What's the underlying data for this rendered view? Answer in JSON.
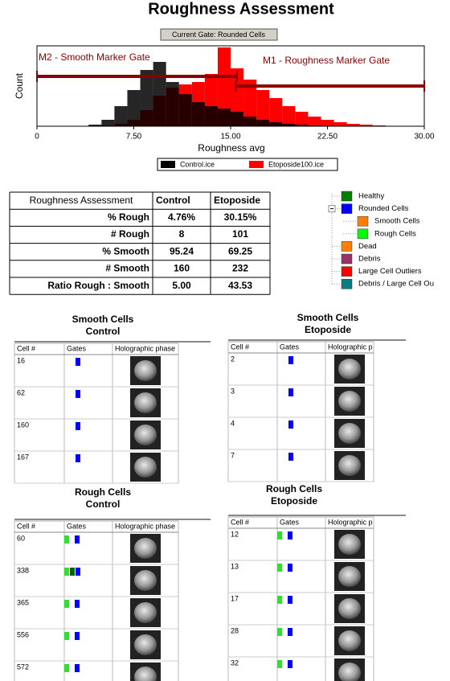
{
  "header": {
    "title": "Roughness Assessment",
    "current_gate": "Current Gate: Rounded Cells"
  },
  "histogram": {
    "x_label": "Roughness avg",
    "y_label": "Count",
    "xlim": [
      0,
      30
    ],
    "xticks": [
      0,
      {
        "value": 7.5,
        "label": "7.50"
      },
      {
        "value": 15,
        "label": "15.00"
      },
      {
        "value": 22.5,
        "label": "22.50"
      },
      {
        "value": 30,
        "label": "30.00"
      }
    ],
    "ylim": [
      0,
      100
    ],
    "bins": [
      0,
      1,
      2,
      3,
      4,
      5,
      6,
      7,
      8,
      9,
      10,
      11,
      12,
      13,
      14,
      15,
      16,
      17,
      18,
      19,
      20,
      21,
      22,
      23,
      24,
      25,
      26,
      27,
      28,
      29,
      30
    ],
    "series": [
      {
        "name": "Etoposide100.ice",
        "color": "#ff0000",
        "values": [
          0,
          0,
          0,
          0,
          0,
          1,
          3,
          8,
          20,
          38,
          48,
          52,
          55,
          65,
          98,
          72,
          58,
          45,
          35,
          25,
          18,
          12,
          8,
          5,
          3,
          2,
          1,
          0,
          0,
          0
        ]
      },
      {
        "name": "Control.ice",
        "color": "#000000",
        "values": [
          0,
          0,
          0,
          0,
          2,
          8,
          25,
          45,
          70,
          80,
          55,
          40,
          30,
          25,
          22,
          18,
          12,
          8,
          5,
          3,
          2,
          1,
          0,
          0,
          0,
          0,
          0,
          0,
          0,
          0
        ]
      }
    ],
    "markers": [
      {
        "label": "M2 - Smooth Marker Gate",
        "range": [
          0,
          15.5
        ],
        "color": "#8b0000"
      },
      {
        "label": "M1 - Roughness Marker Gate",
        "range": [
          15.4,
          30
        ],
        "color": "#8b0000"
      }
    ]
  },
  "summary_table": {
    "columns": [
      "Roughness Assessment",
      "Control",
      "Etoposide"
    ],
    "rows": [
      [
        "% Rough",
        "4.76%",
        "30.15%"
      ],
      [
        "# Rough",
        "8",
        "101"
      ],
      [
        "% Smooth",
        "95.24",
        "69.25"
      ],
      [
        "# Smooth",
        "160",
        "232"
      ],
      [
        "Ratio Rough : Smooth",
        "5.00",
        "43.53"
      ]
    ]
  },
  "gate_tree": [
    {
      "label": "Healthy",
      "color": "#008000",
      "level": 0
    },
    {
      "label": "Rounded Cells",
      "color": "#0000ff",
      "level": 0
    },
    {
      "label": "Smooth Cells",
      "color": "#ff8000",
      "level": 1
    },
    {
      "label": "Rough Cells",
      "color": "#00ff00",
      "level": 1
    },
    {
      "label": "Dead",
      "color": "#ff8000",
      "level": 0
    },
    {
      "label": "Debris",
      "color": "#993366",
      "level": 0
    },
    {
      "label": "Large Cell Outliers",
      "color": "#ff0000",
      "level": 0
    },
    {
      "label": "Debris / Large Cell Ou",
      "color": "#008080",
      "level": 0
    }
  ],
  "panels": [
    {
      "title": [
        "Smooth Cells",
        "Control"
      ],
      "columns": [
        "Cell #",
        "Gates",
        "Holographic phase"
      ],
      "rows": [
        {
          "cell": 16,
          "gates": [
            "#0000ff"
          ]
        },
        {
          "cell": 62,
          "gates": [
            "#0000ff"
          ]
        },
        {
          "cell": 160,
          "gates": [
            "#0000ff"
          ]
        },
        {
          "cell": 167,
          "gates": [
            "#0000ff"
          ]
        }
      ]
    },
    {
      "title": [
        "Smooth Cells",
        "Etoposide"
      ],
      "columns": [
        "Cell #",
        "Gates",
        "Holographic p"
      ],
      "rows": [
        {
          "cell": 2,
          "gates": [
            "#0000ff"
          ]
        },
        {
          "cell": 3,
          "gates": [
            "#0000ff"
          ]
        },
        {
          "cell": 4,
          "gates": [
            "#0000ff"
          ]
        },
        {
          "cell": 7,
          "gates": [
            "#0000ff"
          ]
        }
      ]
    },
    {
      "title": [
        "Rough Cells",
        "Control"
      ],
      "columns": [
        "Cell #",
        "Gates",
        "Holographic phase"
      ],
      "rows": [
        {
          "cell": 60,
          "gates": [
            "#33dd33",
            "#0000ff"
          ]
        },
        {
          "cell": 338,
          "gates": [
            "#33dd33",
            "#006600",
            "#0000ff"
          ]
        },
        {
          "cell": 365,
          "gates": [
            "#33dd33",
            "#0000ff"
          ]
        },
        {
          "cell": 556,
          "gates": [
            "#33dd33",
            "#0000ff"
          ]
        },
        {
          "cell": 572,
          "gates": [
            "#33dd33",
            "#0000ff"
          ]
        }
      ]
    },
    {
      "title": [
        "Rough Cells",
        "Etoposide"
      ],
      "columns": [
        "Cell #",
        "Gates",
        "Holographic p"
      ],
      "rows": [
        {
          "cell": 12,
          "gates": [
            "#33dd33",
            "#0000ff"
          ]
        },
        {
          "cell": 13,
          "gates": [
            "#33dd33",
            "#0000ff"
          ]
        },
        {
          "cell": 17,
          "gates": [
            "#33dd33",
            "#0000ff"
          ]
        },
        {
          "cell": 28,
          "gates": [
            "#33dd33",
            "#0000ff"
          ]
        },
        {
          "cell": 32,
          "gates": [
            "#33dd33",
            "#0000ff"
          ]
        }
      ]
    }
  ]
}
